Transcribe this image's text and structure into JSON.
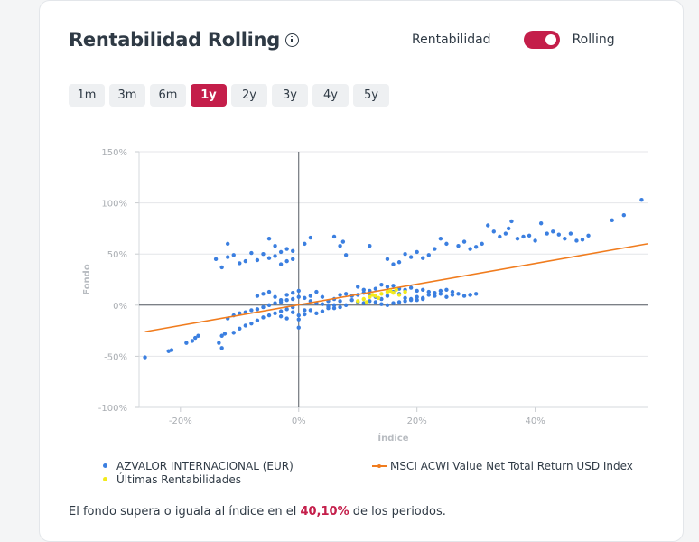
{
  "title": "Rentabilidad Rolling",
  "toggle": {
    "left_label": "Rentabilidad",
    "right_label": "Rolling",
    "checked": true
  },
  "periods": [
    "1m",
    "3m",
    "6m",
    "1y",
    "2y",
    "3y",
    "4y",
    "5y"
  ],
  "active_period": "1y",
  "footer": {
    "prefix": "El fondo supera o iguala al índice en el ",
    "value": "40,10%",
    "suffix": " de los periodos."
  },
  "colors": {
    "accent": "#c41e4a",
    "fund": "#3b7fe0",
    "latest": "#f2ea1b",
    "index_line": "#f07c1e"
  },
  "chart_data": {
    "type": "scatter",
    "xlabel": "Índice",
    "ylabel": "Fondo",
    "xlim": [
      -27,
      59
    ],
    "ylim": [
      -100,
      150
    ],
    "x_ticks": [
      {
        "v": -20,
        "label": "-20%"
      },
      {
        "v": 0,
        "label": "0%"
      },
      {
        "v": 20,
        "label": "20%"
      },
      {
        "v": 40,
        "label": "40%"
      }
    ],
    "y_ticks": [
      {
        "v": 150,
        "label": "150%"
      },
      {
        "v": 100,
        "label": "100%"
      },
      {
        "v": 50,
        "label": "50%"
      },
      {
        "v": 0,
        "label": "0%"
      },
      {
        "v": -50,
        "label": "-50%"
      },
      {
        "v": -100,
        "label": "-100%"
      }
    ],
    "grid": true,
    "legend_position": "bottom",
    "series": [
      {
        "name": "AZVALOR INTERNACIONAL (EUR)",
        "kind": "scatter",
        "color": "#3b7fe0",
        "points": [
          [
            -26,
            -51
          ],
          [
            -22,
            -45
          ],
          [
            -21.5,
            -44
          ],
          [
            -19,
            -37
          ],
          [
            -18,
            -35
          ],
          [
            -17.5,
            -32
          ],
          [
            -17,
            -30
          ],
          [
            -13,
            -42
          ],
          [
            -13.5,
            -37
          ],
          [
            -13,
            -30
          ],
          [
            -12.5,
            -28
          ],
          [
            -11,
            -27
          ],
          [
            -10,
            -23
          ],
          [
            -9,
            -20
          ],
          [
            -8,
            -18
          ],
          [
            -7,
            -15
          ],
          [
            -6,
            -12
          ],
          [
            -5,
            -10
          ],
          [
            -4,
            -8
          ],
          [
            -3,
            -6
          ],
          [
            -2,
            -4
          ],
          [
            -1,
            -7
          ],
          [
            0,
            -10
          ],
          [
            -1,
            -2
          ],
          [
            1,
            -5
          ],
          [
            -10,
            -8
          ],
          [
            -9,
            -7
          ],
          [
            -8,
            -5
          ],
          [
            -7,
            -4
          ],
          [
            -12,
            -13
          ],
          [
            -11,
            -10
          ],
          [
            -6,
            -2
          ],
          [
            -5,
            0
          ],
          [
            -4,
            2
          ],
          [
            -3,
            3
          ],
          [
            -2,
            5
          ],
          [
            -1,
            6
          ],
          [
            0,
            8
          ],
          [
            1,
            7
          ],
          [
            2,
            4
          ],
          [
            3,
            2
          ],
          [
            4,
            1
          ],
          [
            5,
            -1
          ],
          [
            6,
            -3
          ],
          [
            7,
            -2
          ],
          [
            8,
            0
          ],
          [
            -14,
            45
          ],
          [
            -13,
            37
          ],
          [
            -12,
            47
          ],
          [
            -11,
            49
          ],
          [
            -10,
            41
          ],
          [
            -9,
            43
          ],
          [
            -8,
            51
          ],
          [
            -7,
            44
          ],
          [
            -6,
            50
          ],
          [
            -5,
            46
          ],
          [
            -4,
            48
          ],
          [
            -3,
            52
          ],
          [
            -2,
            55
          ],
          [
            -1,
            53
          ],
          [
            -12,
            60
          ],
          [
            -4,
            58
          ],
          [
            -5,
            65
          ],
          [
            -3,
            40
          ],
          [
            -2,
            43
          ],
          [
            -1,
            45
          ],
          [
            1,
            60
          ],
          [
            2,
            66
          ],
          [
            -6,
            11
          ],
          [
            -5,
            13
          ],
          [
            -4,
            8
          ],
          [
            -3,
            5
          ],
          [
            -7,
            9
          ],
          [
            -2,
            10
          ],
          [
            -1,
            12
          ],
          [
            0,
            14
          ],
          [
            2,
            9
          ],
          [
            3,
            13
          ],
          [
            4,
            8
          ],
          [
            5,
            4
          ],
          [
            6,
            6
          ],
          [
            7,
            10
          ],
          [
            8,
            11
          ],
          [
            9,
            9
          ],
          [
            10,
            10
          ],
          [
            11,
            12
          ],
          [
            12,
            10
          ],
          [
            13,
            8
          ],
          [
            14,
            6
          ],
          [
            15,
            9
          ],
          [
            16,
            13
          ],
          [
            17,
            11
          ],
          [
            18,
            7
          ],
          [
            19,
            5
          ],
          [
            20,
            8
          ],
          [
            21,
            6
          ],
          [
            22,
            10
          ],
          [
            23,
            9
          ],
          [
            24,
            11
          ],
          [
            25,
            8
          ],
          [
            26,
            10
          ],
          [
            27,
            11
          ],
          [
            28,
            9
          ],
          [
            29,
            10
          ],
          [
            9,
            5
          ],
          [
            10,
            3
          ],
          [
            11,
            2
          ],
          [
            12,
            4
          ],
          [
            13,
            3
          ],
          [
            14,
            1
          ],
          [
            15,
            0
          ],
          [
            16,
            2
          ],
          [
            17,
            3
          ],
          [
            18,
            4
          ],
          [
            19,
            6
          ],
          [
            20,
            5
          ],
          [
            21,
            7
          ],
          [
            7,
            4
          ],
          [
            6,
            0
          ],
          [
            5,
            -3
          ],
          [
            4,
            -6
          ],
          [
            3,
            -8
          ],
          [
            2,
            -5
          ],
          [
            1,
            -9
          ],
          [
            0,
            -14
          ],
          [
            -2,
            -13
          ],
          [
            -3,
            -11
          ],
          [
            0,
            -22
          ],
          [
            6,
            67
          ],
          [
            7,
            58
          ],
          [
            7.5,
            62
          ],
          [
            8,
            49
          ],
          [
            12,
            58
          ],
          [
            15,
            45
          ],
          [
            16,
            40
          ],
          [
            17,
            42
          ],
          [
            18,
            50
          ],
          [
            19,
            47
          ],
          [
            20,
            52
          ],
          [
            21,
            46
          ],
          [
            22,
            49
          ],
          [
            23,
            55
          ],
          [
            25,
            60
          ],
          [
            24,
            65
          ],
          [
            27,
            58
          ],
          [
            28,
            62
          ],
          [
            29,
            55
          ],
          [
            30,
            57
          ],
          [
            31,
            60
          ],
          [
            32,
            78
          ],
          [
            33,
            72
          ],
          [
            34,
            67
          ],
          [
            35,
            70
          ],
          [
            35.5,
            75
          ],
          [
            36,
            82
          ],
          [
            37,
            65
          ],
          [
            38,
            67
          ],
          [
            39,
            68
          ],
          [
            40,
            63
          ],
          [
            41,
            80
          ],
          [
            42,
            70
          ],
          [
            43,
            72
          ],
          [
            44,
            69
          ],
          [
            45,
            65
          ],
          [
            46,
            70
          ],
          [
            47,
            63
          ],
          [
            48,
            64
          ],
          [
            49,
            68
          ],
          [
            53,
            83
          ],
          [
            55,
            88
          ],
          [
            58,
            103
          ],
          [
            10,
            18
          ],
          [
            11,
            15
          ],
          [
            12,
            14
          ],
          [
            13,
            16
          ],
          [
            14,
            20
          ],
          [
            15,
            18
          ],
          [
            16,
            19
          ],
          [
            17,
            16
          ],
          [
            18,
            15
          ],
          [
            19,
            17
          ],
          [
            20,
            14
          ],
          [
            21,
            15
          ],
          [
            22,
            13
          ],
          [
            23,
            12
          ],
          [
            24,
            14
          ],
          [
            25,
            15
          ],
          [
            26,
            13
          ],
          [
            29,
            10
          ],
          [
            30,
            11
          ]
        ]
      },
      {
        "name": "Últimas Rentabilidades",
        "kind": "scatter",
        "color": "#f2ea1b",
        "points": [
          [
            10,
            4
          ],
          [
            11,
            6
          ],
          [
            12,
            8
          ],
          [
            12.5,
            10
          ],
          [
            13,
            9
          ],
          [
            14,
            11
          ],
          [
            15,
            13
          ],
          [
            15.5,
            14
          ],
          [
            16,
            12
          ],
          [
            17,
            10
          ],
          [
            18,
            13
          ],
          [
            11.5,
            3
          ],
          [
            13.5,
            7
          ],
          [
            16.5,
            15
          ]
        ]
      },
      {
        "name": "MSCI ACWI Value Net Total Return USD Index",
        "kind": "line",
        "color": "#f07c1e",
        "points": [
          [
            -26,
            -26
          ],
          [
            59,
            60
          ]
        ]
      }
    ]
  }
}
